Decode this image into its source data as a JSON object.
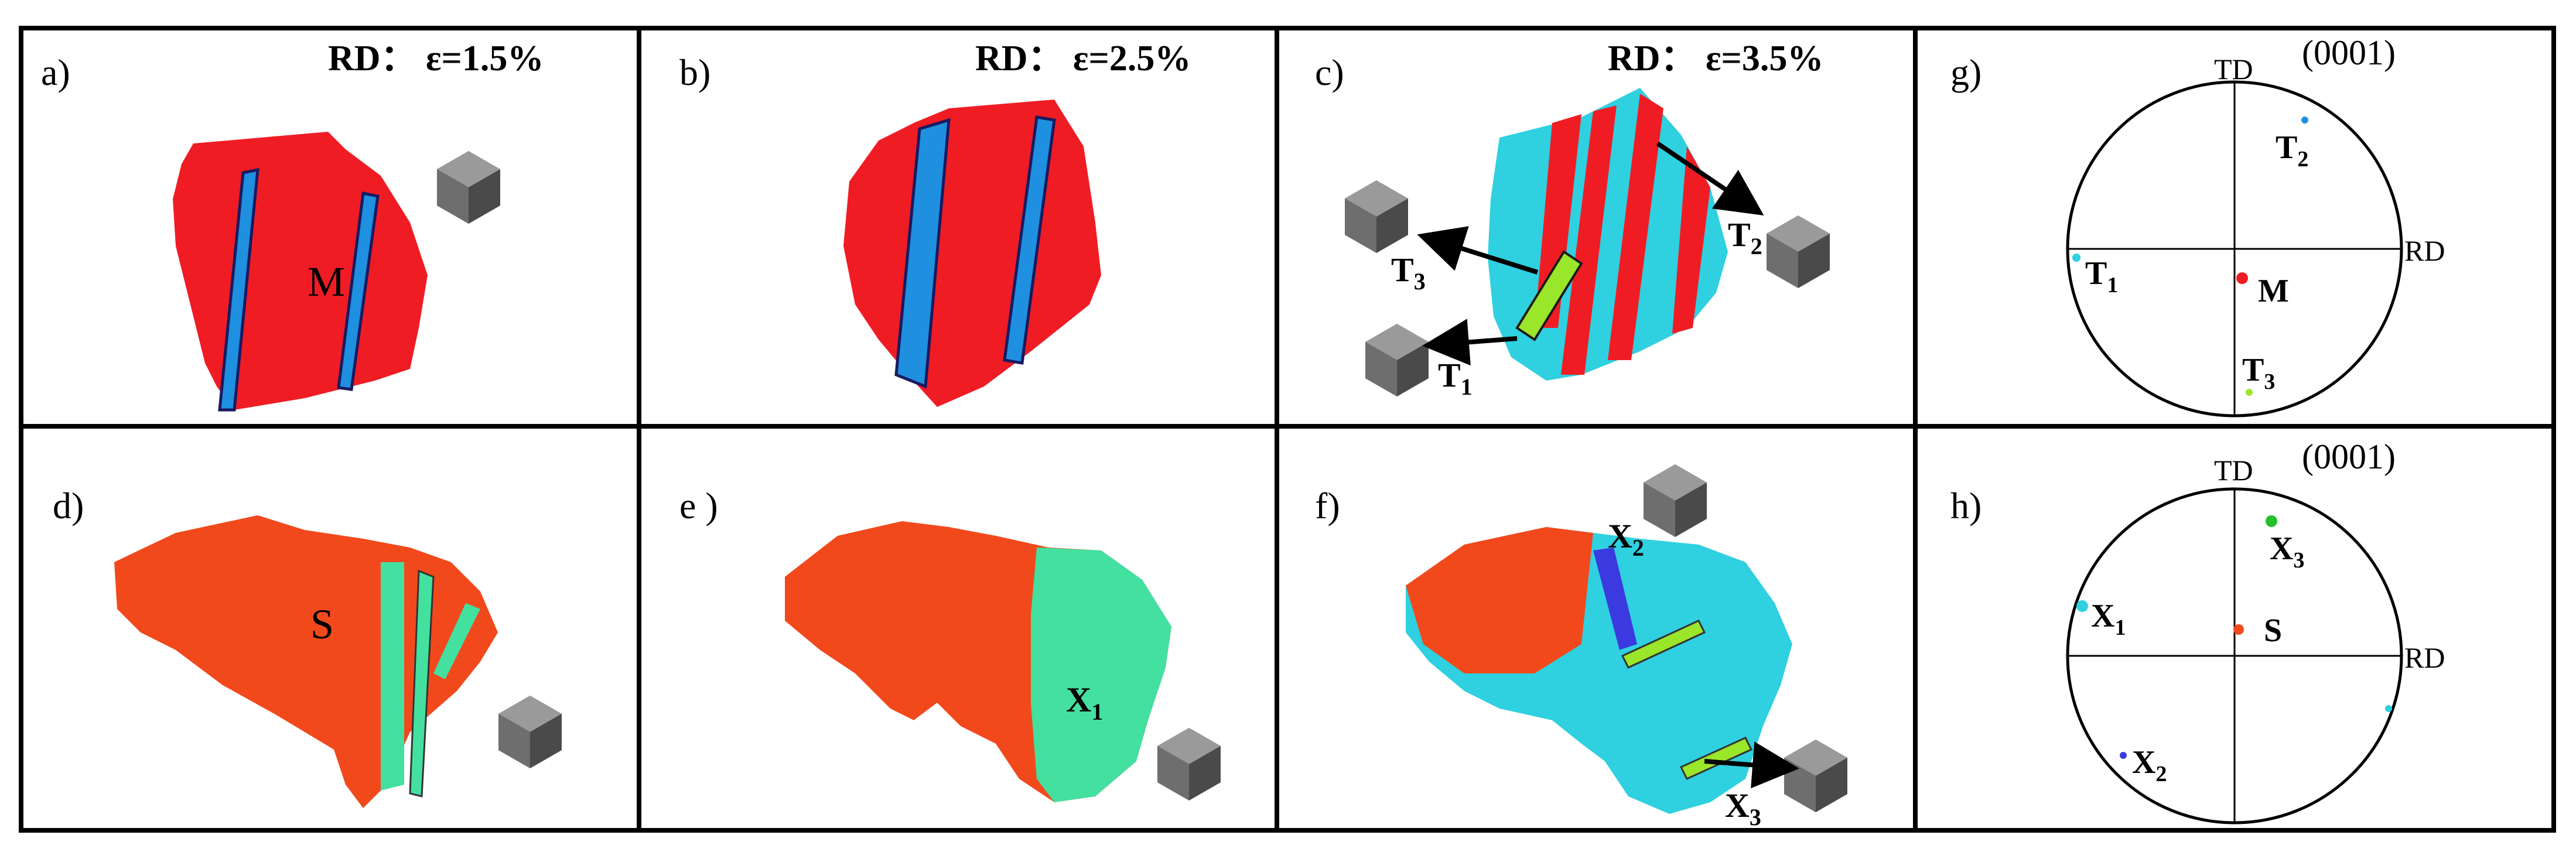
{
  "panels": {
    "a": {
      "label": "a)",
      "annotation": "RD： ε=1.5%",
      "grain": "M"
    },
    "b": {
      "label": "b)",
      "annotation": "RD： ε=2.5%"
    },
    "c": {
      "label": "c)",
      "annotation": "RD： ε=3.5%",
      "twins": [
        "T",
        "T",
        "T"
      ],
      "subs": [
        "3",
        "1",
        "2"
      ]
    },
    "d": {
      "label": "d)",
      "grain": "S"
    },
    "e": {
      "label": "e )",
      "twin": "X",
      "sub": "1"
    },
    "f": {
      "label": "f)",
      "twins": [
        "X",
        "X"
      ],
      "subs": [
        "2",
        "3"
      ]
    },
    "g": {
      "label": "g)",
      "plane": "(0001)",
      "td": "TD",
      "rd": "RD",
      "grain": "M",
      "twins": [
        "T",
        "T",
        "T"
      ],
      "subs": [
        "2",
        "1",
        "3"
      ]
    },
    "h": {
      "label": "h)",
      "plane": "(0001)",
      "td": "TD",
      "rd": "RD",
      "grain": "S",
      "twins": [
        "X",
        "X",
        "X"
      ],
      "subs": [
        "3",
        "1",
        "2"
      ]
    }
  },
  "colors": {
    "parent_red": "#f01c24",
    "parent_orange": "#f2491c",
    "twin_blue": "#1f8fe0",
    "twin_cyan": "#2fd0e0",
    "twin_green": "#43e0a0",
    "band_green": "#9ae62a",
    "band_purple": "#3a3ae0",
    "cube_gray": "#6b6b6b",
    "border": "#000000"
  }
}
